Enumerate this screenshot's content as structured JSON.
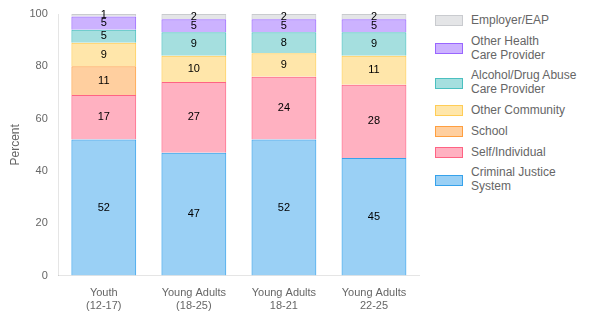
{
  "chart_data": {
    "type": "bar",
    "stacked": true,
    "categories": [
      "Youth\n(12-17)",
      "Young Adults\n(18-25)",
      "Young Adults\n18-21",
      "Young Adults\n22-25"
    ],
    "series": [
      {
        "name": "Criminal Justice\nSystem",
        "values": [
          52,
          47,
          52,
          45
        ]
      },
      {
        "name": "Self/Individual",
        "values": [
          17,
          27,
          24,
          28
        ]
      },
      {
        "name": "School",
        "values": [
          11,
          0,
          0,
          0
        ]
      },
      {
        "name": "Other Community",
        "values": [
          9,
          10,
          9,
          11
        ]
      },
      {
        "name": "Alcohol/Drug Abuse\nCare Provider",
        "values": [
          5,
          9,
          8,
          9
        ]
      },
      {
        "name": "Other Health\nCare Provider",
        "values": [
          5,
          5,
          5,
          5
        ]
      },
      {
        "name": "Employer/EAP",
        "values": [
          1,
          2,
          2,
          2
        ]
      }
    ],
    "ylabel": "Percent",
    "ylim": [
      0,
      100
    ],
    "yticks": [
      0,
      20,
      40,
      60,
      80,
      100
    ],
    "grid": false,
    "data_labels": true,
    "legend": "right"
  }
}
